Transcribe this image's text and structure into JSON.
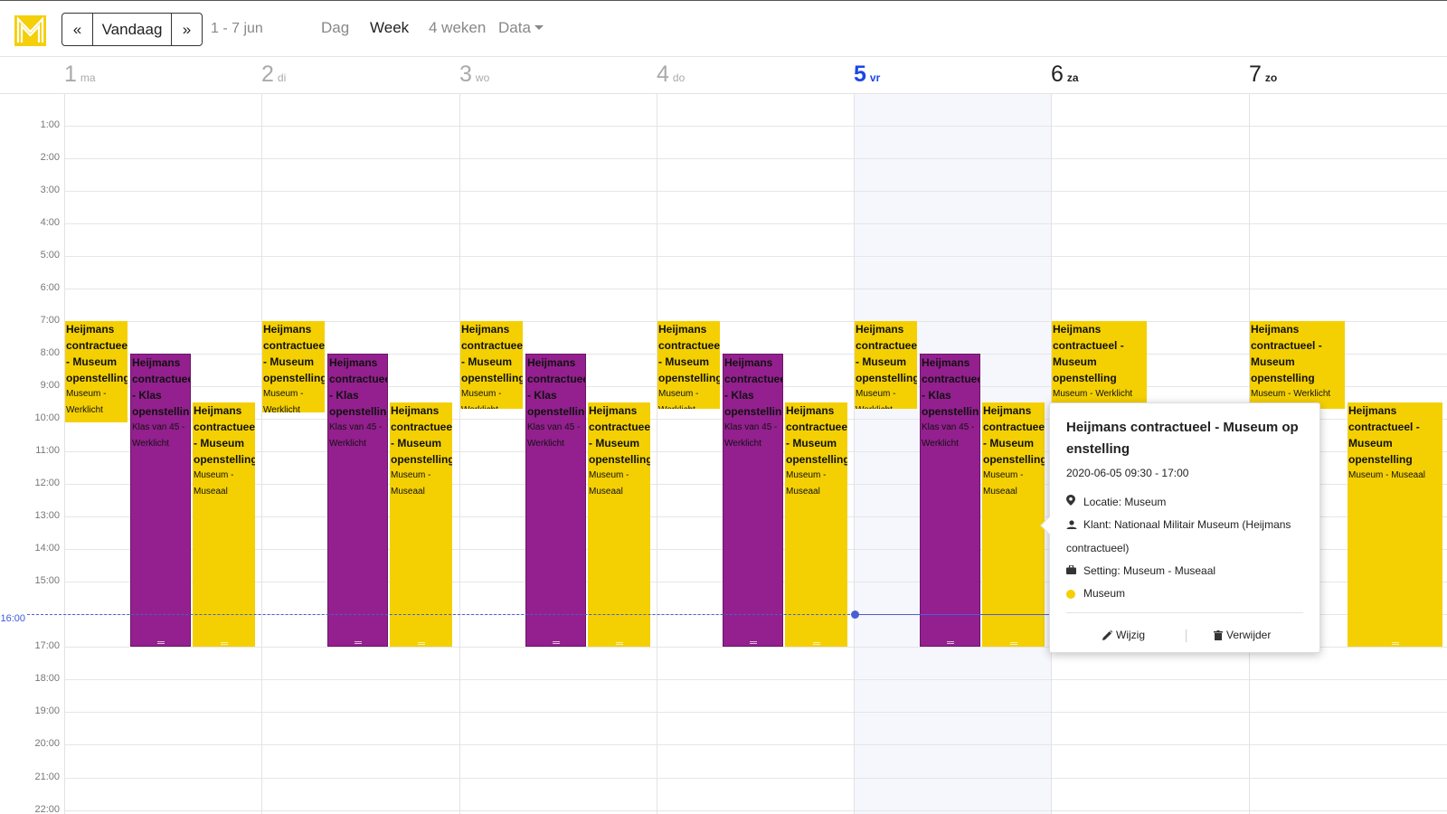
{
  "toolbar": {
    "prev_label": "«",
    "today_label": "Vandaag",
    "next_label": "»",
    "range_label": "1 - 7 jun",
    "views": [
      {
        "label": "Dag",
        "active": false
      },
      {
        "label": "Week",
        "active": true
      },
      {
        "label": "4 weken",
        "active": false
      },
      {
        "label": "Data",
        "active": false
      }
    ]
  },
  "days": [
    {
      "num": "1",
      "name": "ma",
      "state": "past"
    },
    {
      "num": "2",
      "name": "di",
      "state": "past"
    },
    {
      "num": "3",
      "name": "wo",
      "state": "past"
    },
    {
      "num": "4",
      "name": "do",
      "state": "past"
    },
    {
      "num": "5",
      "name": "vr",
      "state": "today"
    },
    {
      "num": "6",
      "name": "za",
      "state": "weekend"
    },
    {
      "num": "7",
      "name": "zo",
      "state": "weekend"
    }
  ],
  "time_labels": [
    "1:00",
    "2:00",
    "3:00",
    "4:00",
    "5:00",
    "6:00",
    "7:00",
    "8:00",
    "9:00",
    "10:00",
    "11:00",
    "12:00",
    "13:00",
    "14:00",
    "15:00",
    "",
    "17:00",
    "18:00",
    "19:00",
    "20:00",
    "21:00",
    "22:00"
  ],
  "now_label": "16:00",
  "now_time": 16.0,
  "events": [
    {
      "day": 0,
      "slot": 0,
      "start": 7.0,
      "end": 10.1,
      "color": "yellow",
      "title": "Heijmans contractueel - Museum openstelling",
      "sub": "Museum - Werklicht"
    },
    {
      "day": 0,
      "slot": 1,
      "start": 8.0,
      "end": 17.0,
      "color": "purple",
      "title": "Heijmans contractueel - Klas openstelling",
      "sub": "Klas van 45 - Werklicht"
    },
    {
      "day": 0,
      "slot": 2,
      "start": 9.5,
      "end": 17.0,
      "color": "yellow",
      "title": "Heijmans contractueel - Museum openstelling",
      "sub": "Museum - Museaal"
    },
    {
      "day": 1,
      "slot": 0,
      "start": 7.0,
      "end": 9.8,
      "color": "yellow",
      "title": "Heijmans contractueel - Museum openstelling",
      "sub": "Museum - Werklicht"
    },
    {
      "day": 1,
      "slot": 1,
      "start": 8.0,
      "end": 17.0,
      "color": "purple",
      "title": "Heijmans contractueel - Klas openstelling",
      "sub": "Klas van 45 - Werklicht"
    },
    {
      "day": 1,
      "slot": 2,
      "start": 9.5,
      "end": 17.0,
      "color": "yellow",
      "title": "Heijmans contractueel - Museum openstelling",
      "sub": "Museum - Museaal"
    },
    {
      "day": 2,
      "slot": 0,
      "start": 7.0,
      "end": 9.7,
      "color": "yellow",
      "title": "Heijmans contractueel - Museum openstelling",
      "sub": "Museum - Werklicht"
    },
    {
      "day": 2,
      "slot": 1,
      "start": 8.0,
      "end": 17.0,
      "color": "purple",
      "title": "Heijmans contractueel - Klas openstelling",
      "sub": "Klas van 45 - Werklicht"
    },
    {
      "day": 2,
      "slot": 2,
      "start": 9.5,
      "end": 17.0,
      "color": "yellow",
      "title": "Heijmans contractueel - Museum openstelling",
      "sub": "Museum - Museaal"
    },
    {
      "day": 3,
      "slot": 0,
      "start": 7.0,
      "end": 9.7,
      "color": "yellow",
      "title": "Heijmans contractueel - Museum openstelling",
      "sub": "Museum - Werklicht"
    },
    {
      "day": 3,
      "slot": 1,
      "start": 8.0,
      "end": 17.0,
      "color": "purple",
      "title": "Heijmans contractueel - Klas openstelling",
      "sub": "Klas van 45 - Werklicht"
    },
    {
      "day": 3,
      "slot": 2,
      "start": 9.5,
      "end": 17.0,
      "color": "yellow",
      "title": "Heijmans contractueel - Museum openstelling",
      "sub": "Museum - Museaal"
    },
    {
      "day": 4,
      "slot": 0,
      "start": 7.0,
      "end": 9.7,
      "color": "yellow",
      "title": "Heijmans contractueel - Museum openstelling",
      "sub": "Museum - Werklicht"
    },
    {
      "day": 4,
      "slot": 1,
      "start": 8.0,
      "end": 17.0,
      "color": "purple",
      "title": "Heijmans contractueel - Klas openstelling",
      "sub": "Klas van 45 - Werklicht"
    },
    {
      "day": 4,
      "slot": 2,
      "start": 9.5,
      "end": 17.0,
      "color": "yellow",
      "title": "Heijmans contractueel - Museum openstelling",
      "sub": "Museum - Museaal"
    },
    {
      "day": 5,
      "slot": 3,
      "start": 7.0,
      "end": 9.7,
      "color": "yellow",
      "title": "Heijmans contractueel - Museum openstelling",
      "sub": "Museum - Werklicht"
    },
    {
      "day": 6,
      "slot": 3,
      "start": 7.0,
      "end": 9.7,
      "color": "yellow",
      "title": "Heijmans contractueel - Museum openstelling",
      "sub": "Museum - Werklicht"
    },
    {
      "day": 6,
      "slot": 4,
      "start": 9.5,
      "end": 17.0,
      "color": "yellow",
      "title": "Heijmans contractueel - Museum openstelling",
      "sub": "Museum - Museaal"
    }
  ],
  "popover": {
    "title": "Heijmans contractueel - Museum op enstelling",
    "date": "2020-06-05 09:30 - 17:00",
    "location": "Locatie: Museum",
    "client": "Klant: Nationaal Militair Museum (Heijmans contractueel)",
    "setting": "Setting: Museum - Museaal",
    "category": "Museum",
    "category_color": "#f4d003",
    "edit_label": "Wijzig",
    "delete_label": "Verwijder"
  },
  "colors": {
    "yellow": "#f4d003",
    "purple": "#93208e",
    "today": "#1a47e8",
    "now_line": "#4a5fd0"
  }
}
